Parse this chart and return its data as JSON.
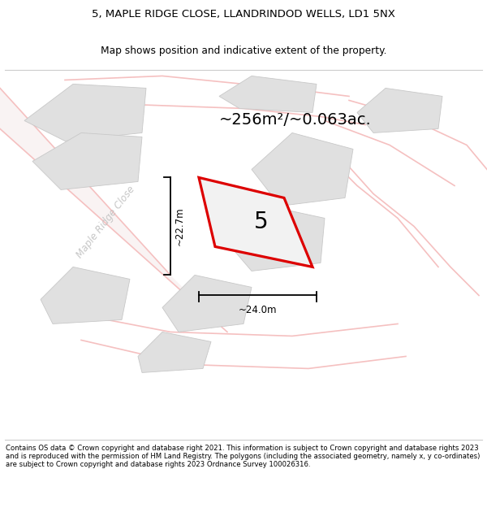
{
  "title_line1": "5, MAPLE RIDGE CLOSE, LLANDRINDOD WELLS, LD1 5NX",
  "title_line2": "Map shows position and indicative extent of the property.",
  "area_label": "~256m²/~0.063ac.",
  "property_number": "5",
  "dim_width": "~24.0m",
  "dim_height": "~22.7m",
  "street_label": "Maple Ridge Close",
  "footer_text": "Contains OS data © Crown copyright and database right 2021. This information is subject to Crown copyright and database rights 2023 and is reproduced with the permission of HM Land Registry. The polygons (including the associated geometry, namely x, y co-ordinates) are subject to Crown copyright and database rights 2023 Ordnance Survey 100026316.",
  "bg_color": "#ffffff",
  "map_bg": "#f7f7f7",
  "road_color": "#f5c0c0",
  "road_fill": "#f5e8e8",
  "red_outline": "#dd0000",
  "black": "#000000",
  "gray_polygon_face": "#e0e0e0",
  "gray_polygon_edge": "#c8c8c8",
  "street_text_color": "#c0c0c0"
}
